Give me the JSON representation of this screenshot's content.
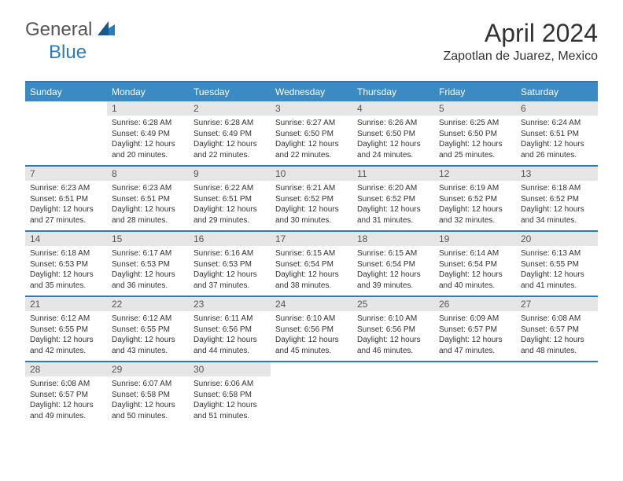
{
  "logo": {
    "textA": "General",
    "textB": "Blue"
  },
  "title": "April 2024",
  "location": "Zapotlan de Juarez, Mexico",
  "colors": {
    "accent": "#2b7bbf",
    "headerBg": "#3b8ac4",
    "dayNumBg": "#e6e6e6",
    "text": "#333333"
  },
  "dayHeaders": [
    "Sunday",
    "Monday",
    "Tuesday",
    "Wednesday",
    "Thursday",
    "Friday",
    "Saturday"
  ],
  "weeks": [
    [
      null,
      {
        "n": "1",
        "sr": "6:28 AM",
        "ss": "6:49 PM",
        "dl": "12 hours and 20 minutes."
      },
      {
        "n": "2",
        "sr": "6:28 AM",
        "ss": "6:49 PM",
        "dl": "12 hours and 22 minutes."
      },
      {
        "n": "3",
        "sr": "6:27 AM",
        "ss": "6:50 PM",
        "dl": "12 hours and 22 minutes."
      },
      {
        "n": "4",
        "sr": "6:26 AM",
        "ss": "6:50 PM",
        "dl": "12 hours and 24 minutes."
      },
      {
        "n": "5",
        "sr": "6:25 AM",
        "ss": "6:50 PM",
        "dl": "12 hours and 25 minutes."
      },
      {
        "n": "6",
        "sr": "6:24 AM",
        "ss": "6:51 PM",
        "dl": "12 hours and 26 minutes."
      }
    ],
    [
      {
        "n": "7",
        "sr": "6:23 AM",
        "ss": "6:51 PM",
        "dl": "12 hours and 27 minutes."
      },
      {
        "n": "8",
        "sr": "6:23 AM",
        "ss": "6:51 PM",
        "dl": "12 hours and 28 minutes."
      },
      {
        "n": "9",
        "sr": "6:22 AM",
        "ss": "6:51 PM",
        "dl": "12 hours and 29 minutes."
      },
      {
        "n": "10",
        "sr": "6:21 AM",
        "ss": "6:52 PM",
        "dl": "12 hours and 30 minutes."
      },
      {
        "n": "11",
        "sr": "6:20 AM",
        "ss": "6:52 PM",
        "dl": "12 hours and 31 minutes."
      },
      {
        "n": "12",
        "sr": "6:19 AM",
        "ss": "6:52 PM",
        "dl": "12 hours and 32 minutes."
      },
      {
        "n": "13",
        "sr": "6:18 AM",
        "ss": "6:52 PM",
        "dl": "12 hours and 34 minutes."
      }
    ],
    [
      {
        "n": "14",
        "sr": "6:18 AM",
        "ss": "6:53 PM",
        "dl": "12 hours and 35 minutes."
      },
      {
        "n": "15",
        "sr": "6:17 AM",
        "ss": "6:53 PM",
        "dl": "12 hours and 36 minutes."
      },
      {
        "n": "16",
        "sr": "6:16 AM",
        "ss": "6:53 PM",
        "dl": "12 hours and 37 minutes."
      },
      {
        "n": "17",
        "sr": "6:15 AM",
        "ss": "6:54 PM",
        "dl": "12 hours and 38 minutes."
      },
      {
        "n": "18",
        "sr": "6:15 AM",
        "ss": "6:54 PM",
        "dl": "12 hours and 39 minutes."
      },
      {
        "n": "19",
        "sr": "6:14 AM",
        "ss": "6:54 PM",
        "dl": "12 hours and 40 minutes."
      },
      {
        "n": "20",
        "sr": "6:13 AM",
        "ss": "6:55 PM",
        "dl": "12 hours and 41 minutes."
      }
    ],
    [
      {
        "n": "21",
        "sr": "6:12 AM",
        "ss": "6:55 PM",
        "dl": "12 hours and 42 minutes."
      },
      {
        "n": "22",
        "sr": "6:12 AM",
        "ss": "6:55 PM",
        "dl": "12 hours and 43 minutes."
      },
      {
        "n": "23",
        "sr": "6:11 AM",
        "ss": "6:56 PM",
        "dl": "12 hours and 44 minutes."
      },
      {
        "n": "24",
        "sr": "6:10 AM",
        "ss": "6:56 PM",
        "dl": "12 hours and 45 minutes."
      },
      {
        "n": "25",
        "sr": "6:10 AM",
        "ss": "6:56 PM",
        "dl": "12 hours and 46 minutes."
      },
      {
        "n": "26",
        "sr": "6:09 AM",
        "ss": "6:57 PM",
        "dl": "12 hours and 47 minutes."
      },
      {
        "n": "27",
        "sr": "6:08 AM",
        "ss": "6:57 PM",
        "dl": "12 hours and 48 minutes."
      }
    ],
    [
      {
        "n": "28",
        "sr": "6:08 AM",
        "ss": "6:57 PM",
        "dl": "12 hours and 49 minutes."
      },
      {
        "n": "29",
        "sr": "6:07 AM",
        "ss": "6:58 PM",
        "dl": "12 hours and 50 minutes."
      },
      {
        "n": "30",
        "sr": "6:06 AM",
        "ss": "6:58 PM",
        "dl": "12 hours and 51 minutes."
      },
      null,
      null,
      null,
      null
    ]
  ],
  "labels": {
    "sunrise": "Sunrise:",
    "sunset": "Sunset:",
    "daylight": "Daylight:"
  }
}
